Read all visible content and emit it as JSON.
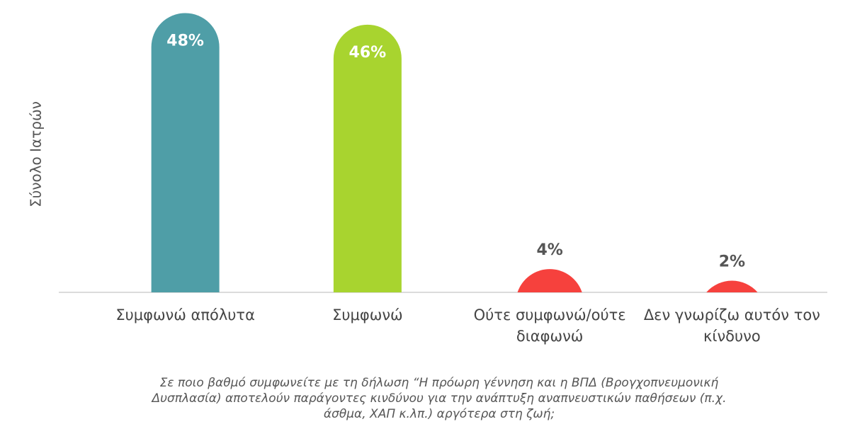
{
  "chart_data": {
    "type": "bar",
    "ylabel": "Σύνολο Ιατρών",
    "categories": [
      "Συμφωνώ απόλυτα",
      "Συμφωνώ",
      "Ούτε συμφωνώ/ούτε διαφωνώ",
      "Δεν γνωρίζω αυτόν τον κίνδυνο"
    ],
    "values": [
      48,
      46,
      4,
      2
    ],
    "value_labels": [
      "48%",
      "46%",
      "4%",
      "2%"
    ],
    "colors": [
      "#4f9ea7",
      "#a8d42f",
      "#f6413d",
      "#f6413d"
    ],
    "ylim": [
      0,
      50
    ],
    "caption": "Σε ποιο βαθμό συμφωνείτε με τη δήλωση “Η πρόωρη γέννηση και η ΒΠΔ (Βρογχοπνευμονική Δυσπλασία) αποτελούν παράγοντες κινδύνου για την ανάπτυξη αναπνευστικών παθήσεων (π.χ. άσθμα, ΧΑΠ κ.λπ.) αργότερα στη ζωή;"
  }
}
